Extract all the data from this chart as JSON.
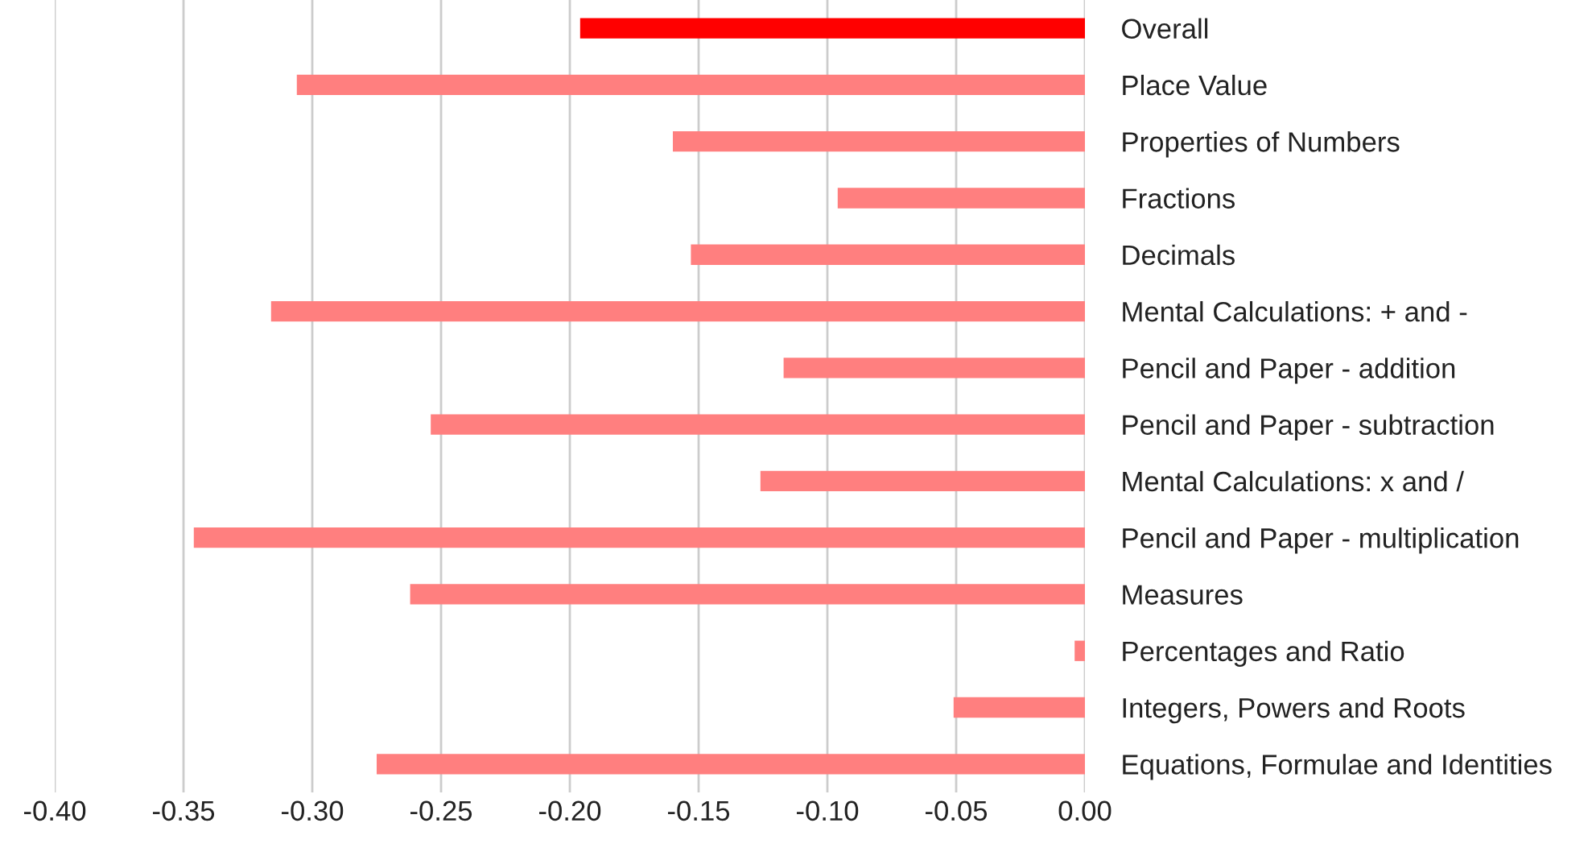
{
  "chart_data": {
    "type": "bar",
    "orientation": "horizontal",
    "categories": [
      "Overall",
      "Place Value",
      "Properties of Numbers",
      "Fractions",
      "Decimals",
      "Mental Calculations: + and -",
      "Pencil and Paper - addition",
      "Pencil and Paper - subtraction",
      "Mental Calculations: x and /",
      "Pencil and Paper - multiplication",
      "Measures",
      "Percentages and Ratio",
      "Integers, Powers and Roots",
      "Equations, Formulae and Identities"
    ],
    "values": [
      -0.196,
      -0.306,
      -0.16,
      -0.096,
      -0.153,
      -0.316,
      -0.117,
      -0.254,
      -0.126,
      -0.346,
      -0.262,
      -0.004,
      -0.051,
      -0.275
    ],
    "colors": [
      "#ff0000",
      "#ff7f7f",
      "#ff7f7f",
      "#ff7f7f",
      "#ff7f7f",
      "#ff7f7f",
      "#ff7f7f",
      "#ff7f7f",
      "#ff7f7f",
      "#ff7f7f",
      "#ff7f7f",
      "#ff7f7f",
      "#ff7f7f",
      "#ff7f7f"
    ],
    "xlim": [
      -0.4,
      0.0
    ],
    "xticks": [
      {
        "value": -0.4,
        "label": "-0.40"
      },
      {
        "value": -0.35,
        "label": "-0.35"
      },
      {
        "value": -0.3,
        "label": "-0.30"
      },
      {
        "value": -0.25,
        "label": "-0.25"
      },
      {
        "value": -0.2,
        "label": "-0.20"
      },
      {
        "value": -0.15,
        "label": "-0.15"
      },
      {
        "value": -0.1,
        "label": "-0.10"
      },
      {
        "value": -0.05,
        "label": "-0.05"
      },
      {
        "value": 0.0,
        "label": "0.00"
      }
    ],
    "grid": "x",
    "legend": false
  }
}
